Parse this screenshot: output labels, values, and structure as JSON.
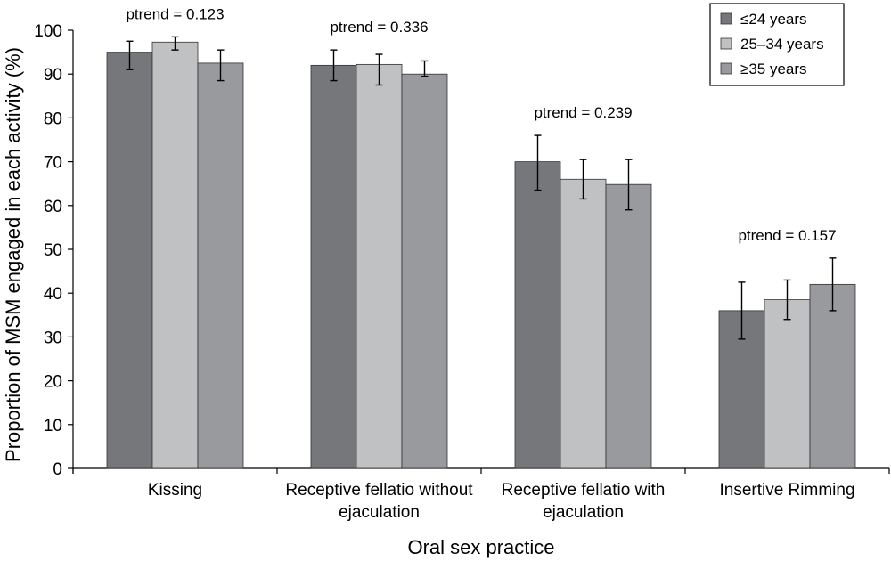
{
  "chart_data": {
    "type": "bar",
    "xlabel": "Oral sex practice",
    "ylabel": "Proportion of MSM engaged in each activity (%)",
    "ylim": [
      0,
      100
    ],
    "yticks": [
      0,
      10,
      20,
      30,
      40,
      50,
      60,
      70,
      80,
      90,
      100
    ],
    "grid": false,
    "legend_position": "top-right",
    "categories": [
      [
        "Kissing"
      ],
      [
        "Receptive fellatio without",
        "ejaculation"
      ],
      [
        "Receptive fellatio with",
        "ejaculation"
      ],
      [
        "Insertive Rimming"
      ]
    ],
    "annotations": [
      "ptrend = 0.123",
      "ptrend = 0.336",
      "ptrend = 0.239",
      "ptrend = 0.157"
    ],
    "series": [
      {
        "name": "≤24 years",
        "color": "#76777b",
        "values": [
          95,
          92,
          70,
          36
        ],
        "error_low": [
          91,
          88.5,
          63.5,
          29.5
        ],
        "error_high": [
          97.5,
          95.5,
          76,
          42.5
        ]
      },
      {
        "name": "25–34 years",
        "color": "#c0c1c3",
        "values": [
          97.3,
          92.2,
          66,
          38.5
        ],
        "error_low": [
          95.5,
          87.5,
          61.5,
          34
        ],
        "error_high": [
          98.5,
          94.5,
          70.5,
          43
        ]
      },
      {
        "name": "≥35 years",
        "color": "#999a9e",
        "values": [
          92.5,
          90,
          64.8,
          42
        ],
        "error_low": [
          88.5,
          89.5,
          59,
          36
        ],
        "error_high": [
          95.5,
          93,
          70.5,
          48
        ]
      }
    ]
  }
}
